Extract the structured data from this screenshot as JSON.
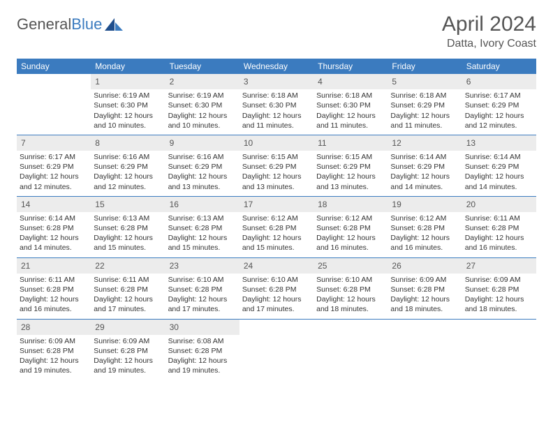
{
  "logo": {
    "text_general": "General",
    "text_blue": "Blue"
  },
  "title": "April 2024",
  "location": "Datta, Ivory Coast",
  "colors": {
    "header_bg": "#3b7bbf",
    "header_text": "#ffffff",
    "daynum_bg": "#ececec",
    "text": "#333333",
    "page_bg": "#ffffff",
    "title_text": "#555555"
  },
  "days_of_week": [
    "Sunday",
    "Monday",
    "Tuesday",
    "Wednesday",
    "Thursday",
    "Friday",
    "Saturday"
  ],
  "weeks": [
    {
      "nums": [
        "",
        "1",
        "2",
        "3",
        "4",
        "5",
        "6"
      ],
      "cells": [
        {
          "sunrise": "",
          "sunset": "",
          "daylight": ""
        },
        {
          "sunrise": "Sunrise: 6:19 AM",
          "sunset": "Sunset: 6:30 PM",
          "daylight": "Daylight: 12 hours and 10 minutes."
        },
        {
          "sunrise": "Sunrise: 6:19 AM",
          "sunset": "Sunset: 6:30 PM",
          "daylight": "Daylight: 12 hours and 10 minutes."
        },
        {
          "sunrise": "Sunrise: 6:18 AM",
          "sunset": "Sunset: 6:30 PM",
          "daylight": "Daylight: 12 hours and 11 minutes."
        },
        {
          "sunrise": "Sunrise: 6:18 AM",
          "sunset": "Sunset: 6:30 PM",
          "daylight": "Daylight: 12 hours and 11 minutes."
        },
        {
          "sunrise": "Sunrise: 6:18 AM",
          "sunset": "Sunset: 6:29 PM",
          "daylight": "Daylight: 12 hours and 11 minutes."
        },
        {
          "sunrise": "Sunrise: 6:17 AM",
          "sunset": "Sunset: 6:29 PM",
          "daylight": "Daylight: 12 hours and 12 minutes."
        }
      ]
    },
    {
      "nums": [
        "7",
        "8",
        "9",
        "10",
        "11",
        "12",
        "13"
      ],
      "cells": [
        {
          "sunrise": "Sunrise: 6:17 AM",
          "sunset": "Sunset: 6:29 PM",
          "daylight": "Daylight: 12 hours and 12 minutes."
        },
        {
          "sunrise": "Sunrise: 6:16 AM",
          "sunset": "Sunset: 6:29 PM",
          "daylight": "Daylight: 12 hours and 12 minutes."
        },
        {
          "sunrise": "Sunrise: 6:16 AM",
          "sunset": "Sunset: 6:29 PM",
          "daylight": "Daylight: 12 hours and 13 minutes."
        },
        {
          "sunrise": "Sunrise: 6:15 AM",
          "sunset": "Sunset: 6:29 PM",
          "daylight": "Daylight: 12 hours and 13 minutes."
        },
        {
          "sunrise": "Sunrise: 6:15 AM",
          "sunset": "Sunset: 6:29 PM",
          "daylight": "Daylight: 12 hours and 13 minutes."
        },
        {
          "sunrise": "Sunrise: 6:14 AM",
          "sunset": "Sunset: 6:29 PM",
          "daylight": "Daylight: 12 hours and 14 minutes."
        },
        {
          "sunrise": "Sunrise: 6:14 AM",
          "sunset": "Sunset: 6:29 PM",
          "daylight": "Daylight: 12 hours and 14 minutes."
        }
      ]
    },
    {
      "nums": [
        "14",
        "15",
        "16",
        "17",
        "18",
        "19",
        "20"
      ],
      "cells": [
        {
          "sunrise": "Sunrise: 6:14 AM",
          "sunset": "Sunset: 6:28 PM",
          "daylight": "Daylight: 12 hours and 14 minutes."
        },
        {
          "sunrise": "Sunrise: 6:13 AM",
          "sunset": "Sunset: 6:28 PM",
          "daylight": "Daylight: 12 hours and 15 minutes."
        },
        {
          "sunrise": "Sunrise: 6:13 AM",
          "sunset": "Sunset: 6:28 PM",
          "daylight": "Daylight: 12 hours and 15 minutes."
        },
        {
          "sunrise": "Sunrise: 6:12 AM",
          "sunset": "Sunset: 6:28 PM",
          "daylight": "Daylight: 12 hours and 15 minutes."
        },
        {
          "sunrise": "Sunrise: 6:12 AM",
          "sunset": "Sunset: 6:28 PM",
          "daylight": "Daylight: 12 hours and 16 minutes."
        },
        {
          "sunrise": "Sunrise: 6:12 AM",
          "sunset": "Sunset: 6:28 PM",
          "daylight": "Daylight: 12 hours and 16 minutes."
        },
        {
          "sunrise": "Sunrise: 6:11 AM",
          "sunset": "Sunset: 6:28 PM",
          "daylight": "Daylight: 12 hours and 16 minutes."
        }
      ]
    },
    {
      "nums": [
        "21",
        "22",
        "23",
        "24",
        "25",
        "26",
        "27"
      ],
      "cells": [
        {
          "sunrise": "Sunrise: 6:11 AM",
          "sunset": "Sunset: 6:28 PM",
          "daylight": "Daylight: 12 hours and 16 minutes."
        },
        {
          "sunrise": "Sunrise: 6:11 AM",
          "sunset": "Sunset: 6:28 PM",
          "daylight": "Daylight: 12 hours and 17 minutes."
        },
        {
          "sunrise": "Sunrise: 6:10 AM",
          "sunset": "Sunset: 6:28 PM",
          "daylight": "Daylight: 12 hours and 17 minutes."
        },
        {
          "sunrise": "Sunrise: 6:10 AM",
          "sunset": "Sunset: 6:28 PM",
          "daylight": "Daylight: 12 hours and 17 minutes."
        },
        {
          "sunrise": "Sunrise: 6:10 AM",
          "sunset": "Sunset: 6:28 PM",
          "daylight": "Daylight: 12 hours and 18 minutes."
        },
        {
          "sunrise": "Sunrise: 6:09 AM",
          "sunset": "Sunset: 6:28 PM",
          "daylight": "Daylight: 12 hours and 18 minutes."
        },
        {
          "sunrise": "Sunrise: 6:09 AM",
          "sunset": "Sunset: 6:28 PM",
          "daylight": "Daylight: 12 hours and 18 minutes."
        }
      ]
    },
    {
      "nums": [
        "28",
        "29",
        "30",
        "",
        "",
        "",
        ""
      ],
      "cells": [
        {
          "sunrise": "Sunrise: 6:09 AM",
          "sunset": "Sunset: 6:28 PM",
          "daylight": "Daylight: 12 hours and 19 minutes."
        },
        {
          "sunrise": "Sunrise: 6:09 AM",
          "sunset": "Sunset: 6:28 PM",
          "daylight": "Daylight: 12 hours and 19 minutes."
        },
        {
          "sunrise": "Sunrise: 6:08 AM",
          "sunset": "Sunset: 6:28 PM",
          "daylight": "Daylight: 12 hours and 19 minutes."
        },
        {
          "sunrise": "",
          "sunset": "",
          "daylight": ""
        },
        {
          "sunrise": "",
          "sunset": "",
          "daylight": ""
        },
        {
          "sunrise": "",
          "sunset": "",
          "daylight": ""
        },
        {
          "sunrise": "",
          "sunset": "",
          "daylight": ""
        }
      ]
    }
  ]
}
